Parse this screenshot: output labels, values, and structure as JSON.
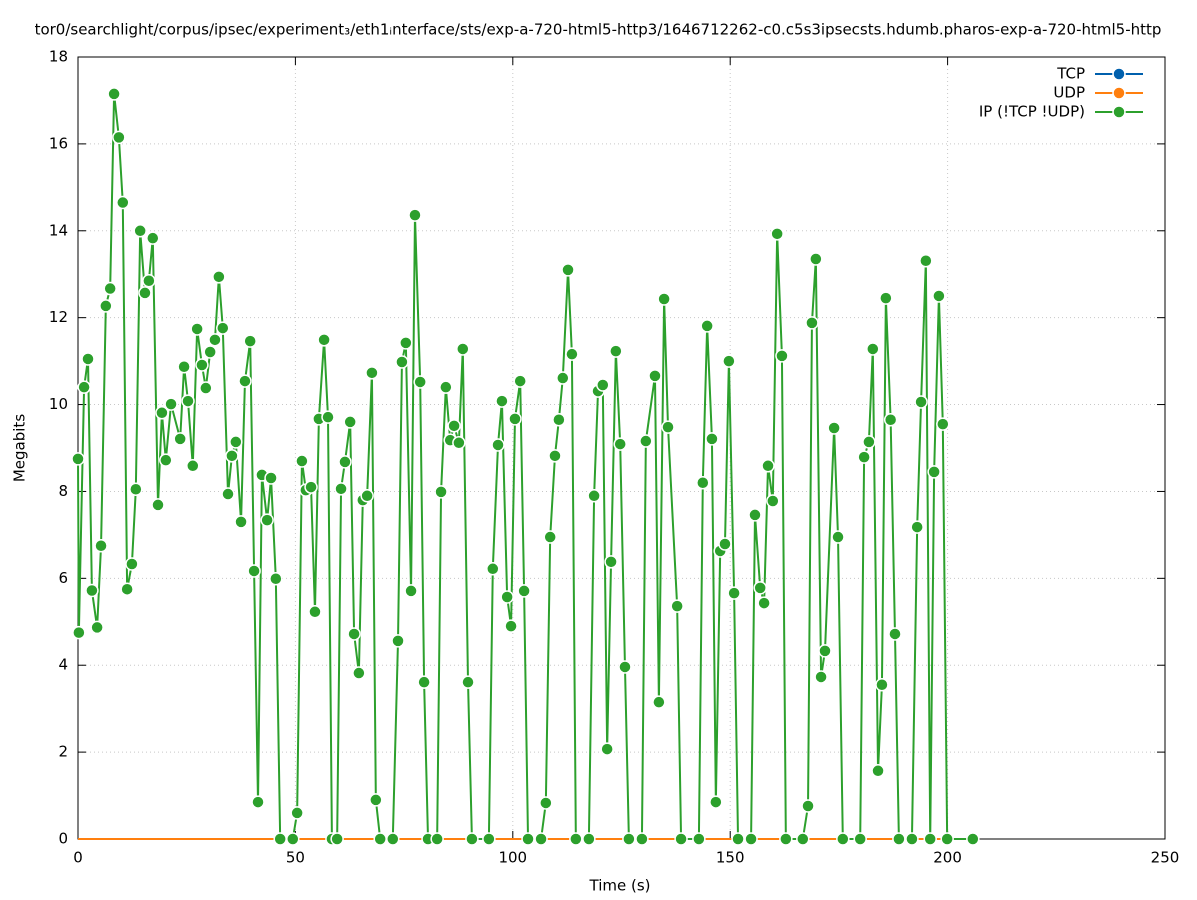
{
  "chart_data": {
    "type": "line",
    "title": "tor0/searchlight/corpus/ipsec/experiment₃/eth1ᵢnterface/sts/exp-a-720-html5-http3/1646712262-c0.c5s3ipsecsts.hdumb.pharos-exp-a-720-html5-http",
    "xlabel": "Time (s)",
    "ylabel": "Megabits",
    "xlim": [
      0,
      250
    ],
    "xticks": [
      0,
      50,
      100,
      150,
      200,
      250
    ],
    "ylim": [
      0,
      18
    ],
    "yticks": [
      0,
      2,
      4,
      6,
      8,
      10,
      12,
      14,
      16,
      18
    ],
    "grid": true,
    "legend": "top-right",
    "series": [
      {
        "name": "TCP",
        "color": "#0060ad",
        "x": [
          0,
          205.8
        ],
        "values": [
          0,
          0
        ]
      },
      {
        "name": "UDP",
        "color": "#ff7f0e",
        "x": [
          0,
          205.8
        ],
        "values": [
          0,
          0
        ]
      },
      {
        "name": "IP (!TCP  !UDP)",
        "color": "#2ca02c",
        "x": [
          0,
          0.2,
          1.4,
          2.3,
          3.2,
          4.4,
          5.3,
          6.4,
          7.4,
          8.3,
          9.4,
          10.3,
          11.3,
          12.4,
          13.3,
          14.3,
          15.4,
          16.3,
          17.2,
          18.4,
          19.3,
          20.2,
          21.4,
          23.5,
          24.4,
          25.3,
          26.4,
          27.4,
          28.5,
          29.4,
          30.4,
          31.5,
          32.4,
          33.3,
          34.5,
          35.4,
          36.3,
          37.5,
          38.4,
          39.6,
          40.5,
          41.4,
          42.3,
          43.5,
          44.4,
          45.5,
          46.5,
          49.4,
          50.4,
          51.5,
          52.4,
          53.6,
          54.5,
          55.4,
          56.6,
          57.5,
          58.4,
          59.6,
          60.5,
          61.4,
          62.6,
          63.5,
          64.6,
          65.5,
          66.5,
          67.6,
          68.5,
          69.5,
          72.4,
          73.6,
          74.5,
          75.4,
          76.6,
          77.5,
          78.7,
          79.6,
          80.5,
          82.6,
          83.5,
          84.6,
          85.6,
          86.5,
          87.6,
          88.5,
          89.7,
          90.6,
          94.5,
          95.4,
          96.6,
          97.5,
          98.7,
          99.6,
          100.5,
          101.7,
          102.6,
          103.5,
          106.5,
          107.6,
          108.6,
          109.7,
          110.6,
          111.5,
          112.7,
          113.6,
          114.5,
          117.5,
          118.7,
          119.6,
          120.7,
          121.7,
          122.6,
          123.7,
          124.7,
          125.8,
          126.7,
          129.7,
          130.6,
          132.7,
          133.6,
          134.8,
          135.7,
          137.8,
          138.7,
          142.8,
          143.7,
          144.7,
          145.8,
          146.7,
          147.7,
          148.8,
          149.7,
          150.9,
          151.8,
          154.8,
          155.7,
          156.9,
          157.8,
          158.7,
          159.8,
          160.8,
          161.9,
          162.8,
          166.7,
          167.9,
          168.8,
          169.7,
          170.9,
          171.8,
          173.9,
          174.8,
          175.9,
          179.9,
          180.8,
          181.9,
          182.8,
          184.0,
          184.9,
          185.8,
          186.9,
          187.9,
          188.8,
          191.8,
          193.0,
          193.9,
          195.0,
          196.0,
          196.9,
          198.0,
          198.9,
          199.9,
          205.8
        ],
        "values": [
          8.75,
          4.75,
          10.4,
          11.05,
          5.72,
          4.87,
          6.75,
          12.27,
          12.67,
          17.15,
          16.15,
          14.65,
          5.75,
          6.33,
          8.05,
          14.0,
          12.57,
          12.85,
          13.83,
          7.69,
          9.81,
          8.72,
          10.01,
          9.21,
          10.87,
          10.08,
          8.59,
          11.74,
          10.91,
          10.38,
          11.21,
          11.49,
          12.94,
          11.76,
          7.94,
          8.82,
          9.14,
          7.3,
          10.54,
          11.46,
          6.17,
          0.85,
          8.38,
          7.34,
          8.31,
          5.99,
          0,
          0,
          0.6,
          8.7,
          8.03,
          8.1,
          5.23,
          9.67,
          11.49,
          9.71,
          0,
          0,
          8.06,
          8.68,
          9.6,
          4.72,
          3.82,
          7.8,
          7.9,
          10.73,
          0.9,
          0,
          0,
          4.56,
          10.98,
          11.42,
          5.71,
          14.36,
          10.52,
          3.61,
          0,
          0,
          7.99,
          10.4,
          9.18,
          9.51,
          9.12,
          11.28,
          3.61,
          0,
          0,
          6.22,
          9.07,
          10.08,
          5.57,
          4.9,
          9.67,
          10.54,
          5.71,
          0,
          0,
          0.83,
          6.95,
          8.82,
          9.65,
          10.61,
          13.1,
          11.16,
          0,
          0,
          7.9,
          10.31,
          10.45,
          2.07,
          6.38,
          11.23,
          9.09,
          3.96,
          0,
          0,
          9.16,
          10.66,
          3.15,
          12.43,
          9.48,
          5.36,
          0,
          0,
          8.2,
          11.81,
          9.21,
          0.85,
          6.63,
          6.79,
          11.0,
          5.66,
          0,
          0,
          7.46,
          5.78,
          5.43,
          8.59,
          7.78,
          13.93,
          11.12,
          0,
          0,
          0.76,
          11.88,
          13.35,
          3.73,
          4.33,
          9.46,
          6.95,
          0,
          0,
          8.79,
          9.14,
          11.28,
          1.57,
          3.55,
          12.45,
          9.65,
          4.72,
          0,
          0,
          7.18,
          10.06,
          13.31,
          0,
          8.45,
          12.5,
          9.55,
          0,
          0
        ]
      }
    ]
  }
}
